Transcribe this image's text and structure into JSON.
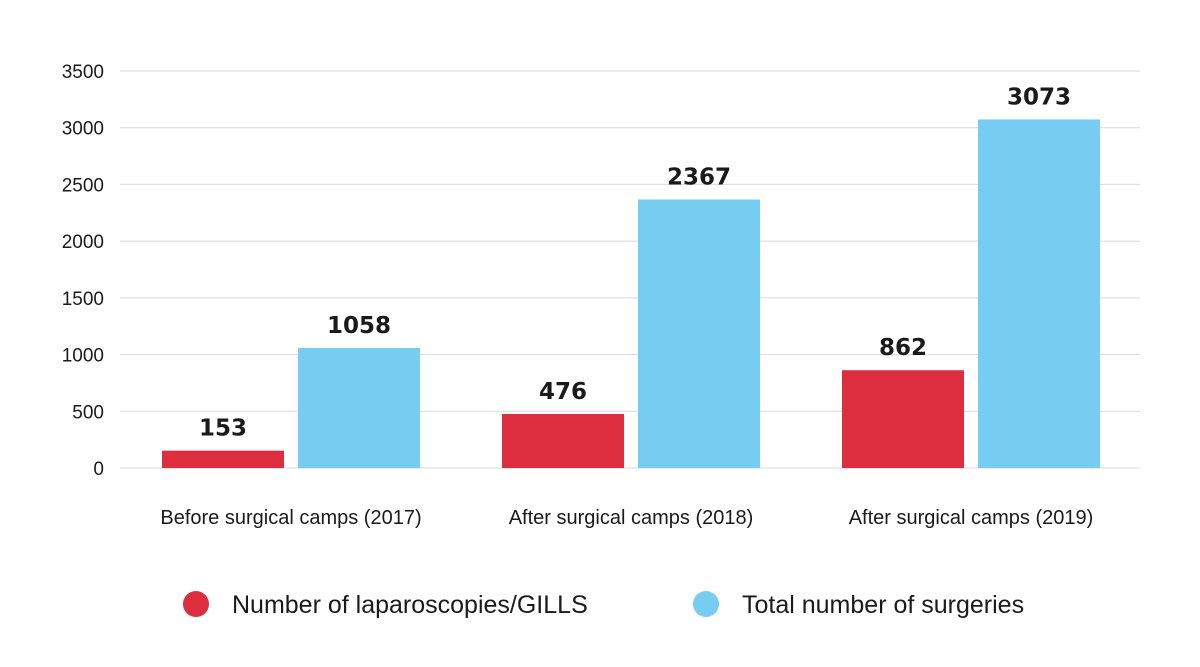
{
  "chart_data": {
    "type": "bar",
    "categories": [
      "Before surgical camps (2017)",
      "After surgical camps (2018)",
      "After surgical camps (2019)"
    ],
    "series": [
      {
        "name": "Number of laparoscopies/GILLS",
        "values": [
          153,
          476,
          862
        ],
        "color": "#dc2e3f"
      },
      {
        "name": "Total number of surgeries",
        "values": [
          1058,
          2367,
          3073
        ],
        "color": "#76cdf1"
      }
    ],
    "ylim": [
      0,
      3500
    ],
    "yticks": [
      0,
      500,
      1000,
      1500,
      2000,
      2500,
      3000,
      3500
    ],
    "grid": true,
    "legend_position": "bottom",
    "data_labels": true
  }
}
